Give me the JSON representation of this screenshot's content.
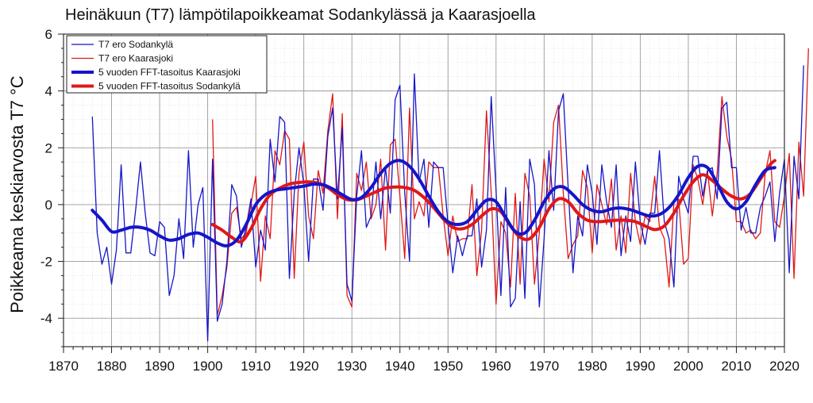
{
  "chart_data": {
    "type": "line",
    "title": "Heinäkuun (T7) lämpötilapoikkeamat Sodankylässä ja Kaarasjoella",
    "ylabel": "Poikkeama keskiarvosta T7 °C",
    "xlabel": "",
    "xlim": [
      1870,
      2020
    ],
    "ylim": [
      -5,
      6
    ],
    "x_ticks": [
      "1870",
      "1880",
      "1890",
      "1900",
      "1910",
      "1920",
      "1930",
      "1940",
      "1950",
      "1960",
      "1970",
      "1980",
      "1990",
      "2000",
      "2010",
      "2020"
    ],
    "y_ticks": [
      "6",
      "4",
      "2",
      "0",
      "-2",
      "-4"
    ],
    "grid": true,
    "legend_position": "top-left",
    "colors": {
      "sodankyla": "#1515c8",
      "kaarasjoki": "#e01818"
    },
    "series": [
      {
        "name": "T7 ero Sodankylä",
        "color": "#1515c8",
        "start_year": 1876,
        "values": [
          3.1,
          -1.0,
          -2.1,
          -1.5,
          -2.8,
          -1.6,
          1.4,
          -1.7,
          -1.7,
          -0.2,
          1.5,
          -0.3,
          -1.7,
          -1.8,
          -0.6,
          -0.8,
          -3.2,
          -2.5,
          -0.5,
          -1.9,
          1.9,
          -1.5,
          0.0,
          0.6,
          -4.8,
          1.6,
          -4.1,
          -3.5,
          -2.0,
          0.7,
          0.3,
          -1.5,
          -0.8,
          0.2,
          -2.2,
          -0.9,
          -1.6,
          2.3,
          0.8,
          3.1,
          2.9,
          -2.6,
          0.4,
          2.0,
          0.7,
          -2.0,
          0.9,
          0.9,
          -0.2,
          2.4,
          3.4,
          0.2,
          2.7,
          -2.8,
          -3.4,
          0.3,
          1.9,
          -0.8,
          -0.4,
          1.5,
          -0.5,
          1.3,
          -0.3,
          3.7,
          4.2,
          0.4,
          -2.0,
          4.6,
          0.8,
          1.6,
          -0.8,
          1.5,
          1.3,
          1.3,
          -0.7,
          -2.4,
          -1.1,
          -1.8,
          -1.1,
          -1.1,
          0.2,
          -2.2,
          -0.9,
          3.8,
          0.5,
          -3.2,
          0.6,
          -3.6,
          -3.3,
          0.1,
          -3.3,
          1.6,
          0.7,
          -3.6,
          -1.2,
          1.9,
          -0.2,
          3.3,
          3.9,
          0.6,
          -2.4,
          -0.4,
          -1.1,
          1.4,
          0.4,
          -1.4,
          1.4,
          0.1,
          -0.8,
          1.4,
          -1.8,
          -0.4,
          -1.3,
          1.5,
          -0.6,
          -1.4,
          -0.3,
          -0.3,
          1.9,
          -0.6,
          -1.2,
          -2.9,
          1.0,
          0.2,
          -0.3,
          1.7,
          1.7,
          0.3,
          1.2,
          1.3,
          0.2,
          3.4,
          3.6,
          1.3,
          1.3,
          -0.9,
          -0.1,
          -1.0,
          -1.0,
          -0.1,
          0.3,
          0.8,
          -1.3,
          0.4,
          1.6,
          -2.4,
          1.7,
          0.2,
          4.9
        ]
      },
      {
        "name": "T7 ero Kaarasjoki",
        "color": "#e01818",
        "start_year": 1901,
        "values": [
          3.0,
          -3.9,
          -3.2,
          -2.2,
          -0.3,
          -0.1,
          -1.2,
          -1.0,
          0.0,
          1.0,
          -2.7,
          -0.4,
          -1.2,
          1.9,
          1.4,
          2.6,
          2.3,
          -2.6,
          1.1,
          2.2,
          -0.4,
          -1.2,
          1.2,
          0.4,
          2.6,
          3.9,
          -0.5,
          3.2,
          -3.2,
          -3.6,
          1.1,
          0.5,
          1.5,
          -0.5,
          0.0,
          1.6,
          -1.6,
          2.1,
          2.3,
          0.3,
          -1.9,
          3.4,
          -0.5,
          0.1,
          -0.4,
          1.5,
          1.3,
          1.3,
          -0.4,
          -1.8,
          -0.4,
          -1.3,
          -1.2,
          -1.2,
          0.7,
          -2.5,
          -0.9,
          3.3,
          0.4,
          -3.5,
          -0.6,
          -1.0,
          -2.9,
          0.4,
          -2.8,
          1.1,
          0.3,
          -2.8,
          -1.0,
          1.6,
          0.1,
          2.9,
          3.5,
          0.4,
          -1.9,
          -1.4,
          -1.1,
          1.2,
          0.6,
          -1.7,
          0.7,
          0.0,
          -0.7,
          0.9,
          -1.6,
          -0.4,
          -1.7,
          1.1,
          -0.6,
          -1.4,
          -0.4,
          -0.6,
          1.0,
          -0.8,
          -1.2,
          -2.9,
          0.1,
          0.2,
          -2.1,
          -1.9,
          1.4,
          0.9,
          0.0,
          1.2,
          -0.4,
          1.1,
          3.8,
          2.4,
          1.6,
          -0.6,
          -0.6,
          -1.0,
          -0.9,
          -1.2,
          -1.0,
          1.1,
          1.9,
          -0.6,
          -0.8,
          0.3,
          1.8,
          -2.6,
          2.2,
          0.3,
          5.5
        ]
      },
      {
        "name": "5 vuoden FFT-tasoitus Kaarasjoki",
        "color": "#1515c8",
        "smooth": true,
        "x": [
          1876,
          1878,
          1880,
          1882,
          1884,
          1886,
          1888,
          1890,
          1892,
          1894,
          1896,
          1898,
          1900,
          1902,
          1904,
          1906,
          1908,
          1910,
          1912,
          1914,
          1916,
          1918,
          1920,
          1922,
          1924,
          1926,
          1928,
          1930,
          1932,
          1934,
          1936,
          1938,
          1940,
          1942,
          1944,
          1946,
          1948,
          1950,
          1952,
          1954,
          1956,
          1958,
          1960,
          1962,
          1964,
          1966,
          1968,
          1970,
          1972,
          1974,
          1976,
          1978,
          1980,
          1982,
          1984,
          1986,
          1988,
          1990,
          1992,
          1994,
          1996,
          1998,
          2000,
          2002,
          2004,
          2006,
          2008,
          2010,
          2012,
          2014,
          2016,
          2018
        ],
        "values": [
          -0.2,
          -0.55,
          -0.95,
          -0.9,
          -0.8,
          -0.8,
          -0.9,
          -1.1,
          -1.25,
          -1.2,
          -1.05,
          -1.0,
          -1.15,
          -1.35,
          -1.45,
          -1.25,
          -0.7,
          0.0,
          0.35,
          0.5,
          0.55,
          0.6,
          0.65,
          0.72,
          0.7,
          0.55,
          0.35,
          0.18,
          0.25,
          0.6,
          1.1,
          1.45,
          1.55,
          1.35,
          0.9,
          0.3,
          -0.25,
          -0.6,
          -0.7,
          -0.6,
          -0.2,
          0.15,
          0.1,
          -0.45,
          -0.95,
          -1.0,
          -0.55,
          0.1,
          0.55,
          0.62,
          0.35,
          0.0,
          -0.2,
          -0.25,
          -0.15,
          -0.12,
          -0.18,
          -0.3,
          -0.4,
          -0.35,
          -0.1,
          0.35,
          0.95,
          1.35,
          1.3,
          0.75,
          0.1,
          -0.15,
          0.1,
          0.7,
          1.2,
          1.3
        ]
      },
      {
        "name": "5 vuoden FFT-tasoitus Sodankylä",
        "color": "#e01818",
        "smooth": true,
        "x": [
          1901,
          1903,
          1905,
          1907,
          1909,
          1911,
          1913,
          1915,
          1917,
          1919,
          1921,
          1923,
          1925,
          1927,
          1929,
          1931,
          1933,
          1935,
          1937,
          1939,
          1941,
          1943,
          1945,
          1947,
          1949,
          1951,
          1953,
          1955,
          1957,
          1959,
          1961,
          1963,
          1965,
          1967,
          1969,
          1971,
          1973,
          1975,
          1977,
          1979,
          1981,
          1983,
          1985,
          1987,
          1989,
          1991,
          1993,
          1995,
          1997,
          1999,
          2001,
          2003,
          2005,
          2007,
          2009,
          2011,
          2013,
          2015,
          2017,
          2018
        ],
        "values": [
          -0.7,
          -0.9,
          -1.15,
          -1.3,
          -0.85,
          -0.15,
          0.35,
          0.58,
          0.72,
          0.78,
          0.8,
          0.75,
          0.6,
          0.35,
          0.18,
          0.17,
          0.3,
          0.45,
          0.58,
          0.62,
          0.6,
          0.5,
          0.25,
          -0.1,
          -0.5,
          -0.8,
          -0.85,
          -0.7,
          -0.4,
          -0.15,
          -0.25,
          -0.75,
          -1.15,
          -1.2,
          -0.8,
          -0.15,
          0.2,
          0.1,
          -0.3,
          -0.55,
          -0.6,
          -0.58,
          -0.55,
          -0.55,
          -0.6,
          -0.75,
          -0.88,
          -0.75,
          -0.3,
          0.3,
          0.8,
          1.05,
          0.85,
          0.55,
          0.3,
          0.2,
          0.4,
          0.9,
          1.4,
          1.55
        ]
      }
    ]
  }
}
